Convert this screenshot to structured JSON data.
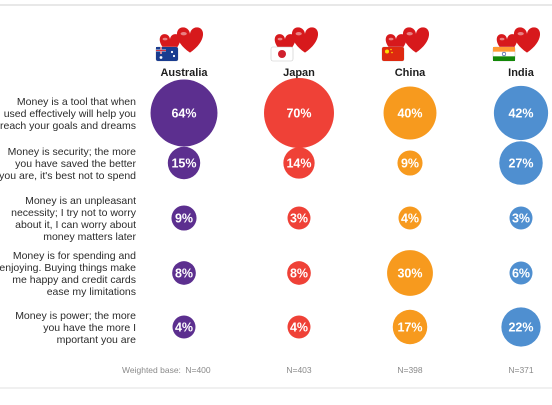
{
  "chart_data": {
    "type": "bubble-grid",
    "categories": [
      "Australia",
      "Japan",
      "China",
      "India"
    ],
    "statements": [
      [
        "Money is a tool that when",
        "used effectively will help you",
        "reach your goals and dreams"
      ],
      [
        "Money is security; the more",
        "you have saved the better",
        "you are, it's best not to spend"
      ],
      [
        "Money is an unpleasant",
        "necessity; I try not to worry",
        "about it, I can worry about",
        "money matters later"
      ],
      [
        "Money is for spending and",
        "enjoying. Buying things make",
        "me happy and credit cards",
        "ease my limitations"
      ],
      [
        "Money is power; the more",
        "you have the more I",
        "mportant you are"
      ]
    ],
    "series": [
      {
        "category": "Australia",
        "color": "#5c2f8f",
        "values": [
          64,
          15,
          9,
          8,
          4
        ],
        "labels": [
          "64%",
          "15%",
          "9%",
          "8%",
          "4%"
        ]
      },
      {
        "category": "Japan",
        "color": "#ef4137",
        "values": [
          70,
          14,
          3,
          8,
          4
        ],
        "labels": [
          "70%",
          "14%",
          "3%",
          "8%",
          "4%"
        ]
      },
      {
        "category": "China",
        "color": "#f79a1e",
        "values": [
          40,
          9,
          4,
          30,
          17
        ],
        "labels": [
          "40%",
          "9%",
          "4%",
          "30%",
          "17%"
        ]
      },
      {
        "category": "India",
        "color": "#4f8fd0",
        "values": [
          42,
          27,
          3,
          6,
          22
        ],
        "labels": [
          "42%",
          "27%",
          "3%",
          "6%",
          "22%"
        ]
      }
    ],
    "weighted_base_label": "Weighted base:",
    "weighted_base": [
      "N=400",
      "N=403",
      "N=398",
      "N=371"
    ],
    "icons": [
      "heart-australia-flag-icon",
      "heart-japan-flag-icon",
      "heart-china-flag-icon",
      "heart-india-flag-icon"
    ],
    "heart_color": "#d7191c"
  }
}
